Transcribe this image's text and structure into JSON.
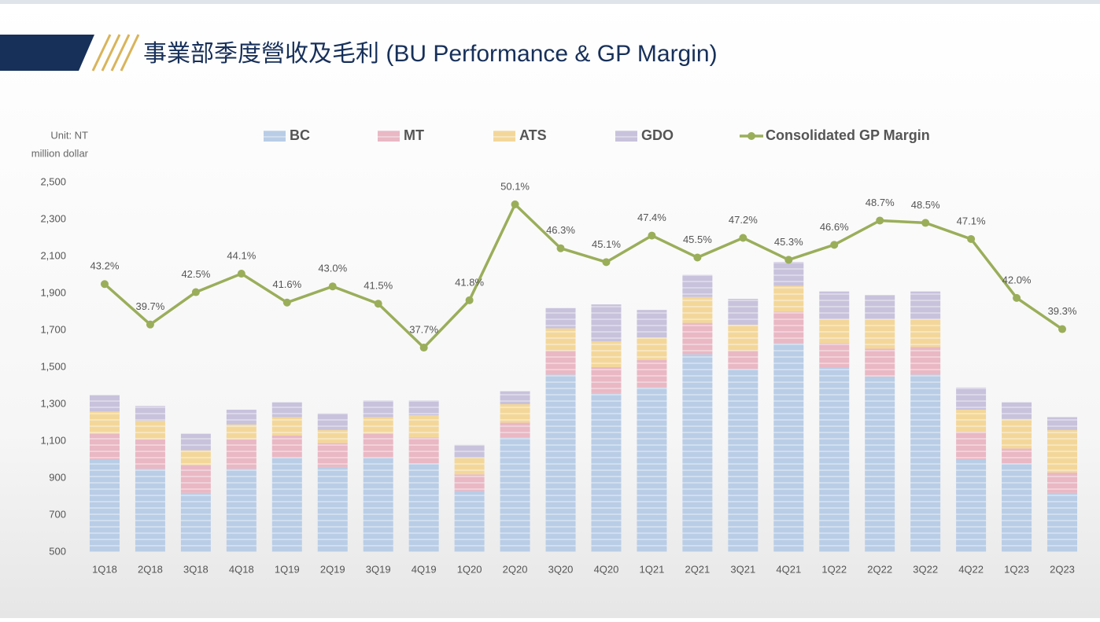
{
  "chart_data": {
    "type": "stacked-bar-line",
    "title": "事業部季度營收及毛利 (BU Performance & GP Margin)",
    "unit_label": [
      "Unit: NT",
      "million dollar"
    ],
    "categories": [
      "1Q18",
      "2Q18",
      "3Q18",
      "4Q18",
      "1Q19",
      "2Q19",
      "3Q19",
      "4Q19",
      "1Q20",
      "2Q20",
      "3Q20",
      "4Q20",
      "1Q21",
      "2Q21",
      "3Q21",
      "4Q21",
      "1Q22",
      "2Q22",
      "3Q22",
      "4Q22",
      "1Q23",
      "2Q23"
    ],
    "series": [
      {
        "name": "BC",
        "color": "#b9cde6",
        "values": [
          1000,
          950,
          820,
          950,
          1010,
          960,
          1010,
          980,
          830,
          1120,
          1460,
          1360,
          1390,
          1570,
          1490,
          1630,
          1500,
          1450,
          1460,
          1000,
          980,
          820
        ]
      },
      {
        "name": "MT",
        "color": "#e9b8c4",
        "values": [
          140,
          160,
          150,
          160,
          120,
          130,
          130,
          140,
          90,
          80,
          130,
          140,
          150,
          170,
          100,
          170,
          130,
          150,
          150,
          150,
          80,
          110
        ]
      },
      {
        "name": "ATS",
        "color": "#f3d79a",
        "values": [
          120,
          100,
          80,
          80,
          100,
          70,
          90,
          120,
          90,
          100,
          120,
          140,
          120,
          140,
          140,
          140,
          130,
          160,
          150,
          120,
          160,
          230
        ]
      },
      {
        "name": "GDO",
        "color": "#c8c2dc",
        "values": [
          90,
          80,
          90,
          80,
          80,
          90,
          90,
          80,
          70,
          70,
          110,
          200,
          150,
          120,
          140,
          130,
          150,
          130,
          150,
          120,
          90,
          70
        ]
      },
      {
        "name": "Consolidated GP Margin",
        "color": "#9aae5a",
        "axis": "y2",
        "values": [
          43.2,
          39.7,
          42.5,
          44.1,
          41.6,
          43.0,
          41.5,
          37.7,
          41.8,
          50.1,
          46.3,
          45.1,
          47.4,
          45.5,
          47.2,
          45.3,
          46.6,
          48.7,
          48.5,
          47.1,
          42.0,
          39.3
        ],
        "value_labels": [
          "43.2%",
          "39.7%",
          "42.5%",
          "44.1%",
          "41.6%",
          "43.0%",
          "41.5%",
          "37.7%",
          "41.8%",
          "50.1%",
          "46.3%",
          "45.1%",
          "47.4%",
          "45.5%",
          "47.2%",
          "45.3%",
          "46.6%",
          "48.7%",
          "48.5%",
          "47.1%",
          "42.0%",
          "39.3%"
        ]
      }
    ],
    "ylim": [
      500,
      2500
    ],
    "yticks": [
      500,
      700,
      900,
      {
        "value": 1100,
        "label": "1,100"
      },
      {
        "value": 1300,
        "label": "1,300"
      },
      {
        "value": 1500,
        "label": "1,500"
      },
      {
        "value": 1700,
        "label": "1,700"
      },
      {
        "value": 1900,
        "label": "1,900"
      },
      {
        "value": 2100,
        "label": "2,100"
      },
      {
        "value": 2300,
        "label": "2,300"
      },
      {
        "value": 2500,
        "label": "2,500"
      }
    ],
    "y2lim": [
      20,
      52
    ],
    "grid": false,
    "legend": "top"
  }
}
